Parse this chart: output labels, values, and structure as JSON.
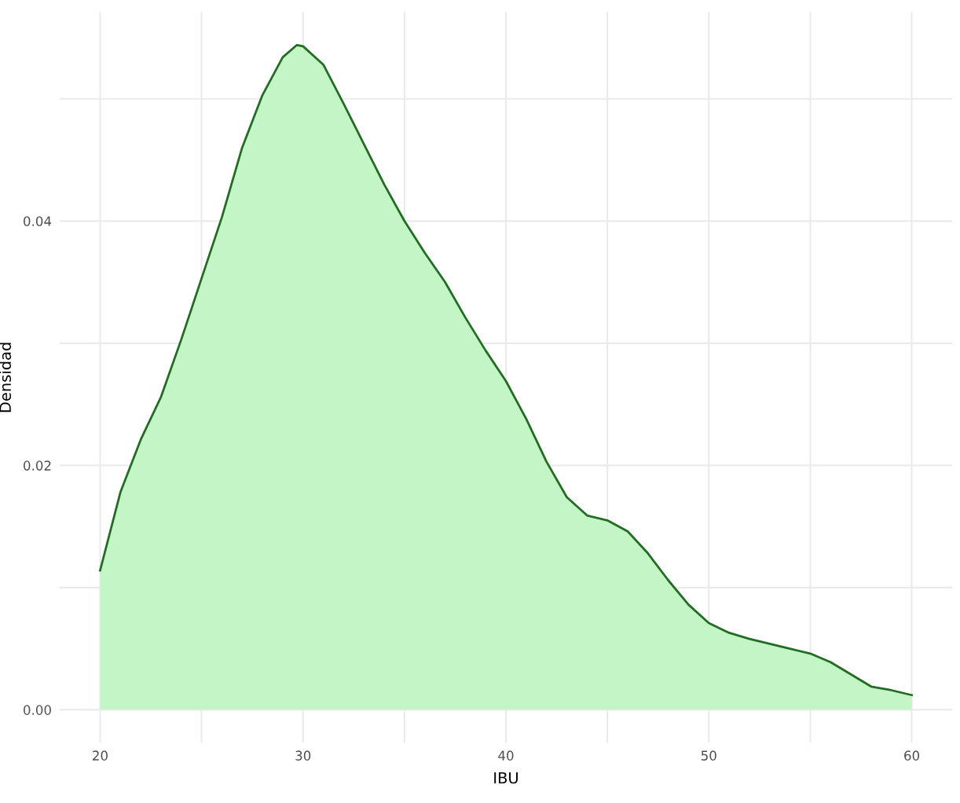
{
  "chart_data": {
    "type": "area",
    "xlabel": "IBU",
    "ylabel": "Densidad",
    "x": [
      20,
      21,
      22,
      23,
      24,
      25,
      26,
      27,
      28,
      29,
      29.7,
      30,
      31,
      32,
      33,
      34,
      35,
      36,
      37,
      38,
      39,
      40,
      41,
      42,
      43,
      44,
      45,
      46,
      47,
      48,
      49,
      50,
      51,
      52,
      53,
      54,
      55,
      56,
      57,
      58,
      59,
      60
    ],
    "series": [
      {
        "color": "#c4f5c6",
        "values": [
          0.0114,
          0.0178,
          0.0221,
          0.0256,
          0.0303,
          0.0353,
          0.0403,
          0.046,
          0.0503,
          0.0534,
          0.0544,
          0.0543,
          0.0528,
          0.0496,
          0.0463,
          0.043,
          0.04,
          0.0374,
          0.035,
          0.0321,
          0.0294,
          0.0269,
          0.0238,
          0.0203,
          0.0174,
          0.0159,
          0.0155,
          0.0146,
          0.0128,
          0.0106,
          0.0086,
          0.0071,
          0.0063,
          0.0058,
          0.0054,
          0.005,
          0.0046,
          0.0039,
          0.0029,
          0.0019,
          0.0016,
          0.0012
        ]
      }
    ],
    "xlim": [
      18,
      62
    ],
    "ylim": [
      -0.0027,
      0.0571
    ],
    "xticks": [
      20,
      {
        "value": 25,
        "label": null
      },
      30,
      {
        "value": 35,
        "label": null
      },
      40,
      {
        "value": 45,
        "label": null
      },
      50,
      {
        "value": 55,
        "label": null
      },
      60
    ],
    "yticks": [
      {
        "value": 0,
        "label": "0.00"
      },
      {
        "value": 0.01,
        "label": null
      },
      {
        "value": 0.02,
        "label": "0.02"
      },
      {
        "value": 0.03,
        "label": null
      },
      {
        "value": 0.04,
        "label": "0.04"
      },
      {
        "value": 0.05,
        "label": null
      }
    ],
    "grid": true
  }
}
